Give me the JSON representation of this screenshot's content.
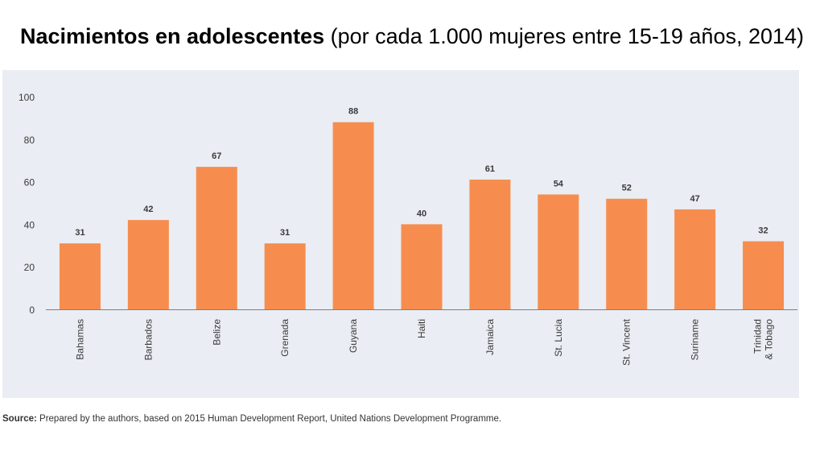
{
  "title": {
    "bold": "Nacimientos en adolescentes",
    "normal": " (por cada 1.000 mujeres entre 15-19 años, 2014)"
  },
  "source": {
    "label": "Source:",
    "text": " Prepared by the authors, based on 2015 Human Development Report, United Nations Development Programme."
  },
  "colors": {
    "bar": "#f68d4f",
    "panel": "#eaedf3",
    "axis": "#7f7f7f",
    "text": "#3a3a3a"
  },
  "chart_data": {
    "type": "bar",
    "categories": [
      "Bahamas",
      "Barbados",
      "Belize",
      "Grenada",
      "Guyana",
      "Haiti",
      "Jamaica",
      "St. Lucia",
      "St. Vincent",
      "Suriname",
      "Trinidad\n& Tobago"
    ],
    "values": [
      31,
      42,
      67,
      31,
      88,
      40,
      61,
      54,
      52,
      47,
      32
    ],
    "title": "",
    "xlabel": "",
    "ylabel": "",
    "ylim": [
      0,
      100
    ],
    "yticks": [
      0,
      20,
      40,
      60,
      80,
      100
    ],
    "grid": false,
    "legend": "none"
  }
}
